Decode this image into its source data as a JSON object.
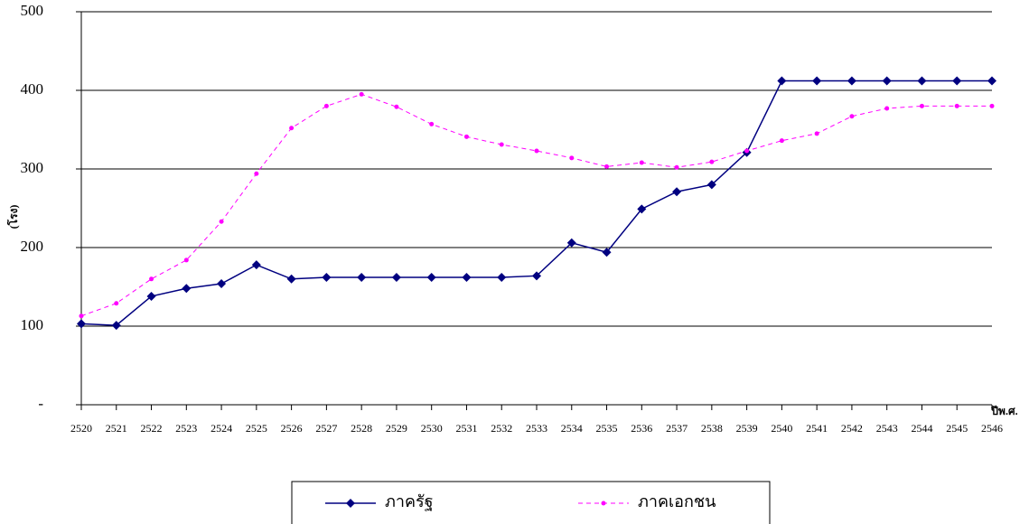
{
  "chart_data": {
    "type": "line",
    "y_label": "(โรง)",
    "x_label": "ปีพ.ศ.",
    "categories": [
      "2520",
      "2521",
      "2522",
      "2523",
      "2524",
      "2525",
      "2526",
      "2527",
      "2528",
      "2529",
      "2530",
      "2531",
      "2532",
      "2533",
      "2534",
      "2535",
      "2536",
      "2537",
      "2538",
      "2539",
      "2540",
      "2541",
      "2542",
      "2543",
      "2544",
      "2545",
      "2546"
    ],
    "series": [
      {
        "name": "ภาครัฐ",
        "color": "#000080",
        "marker": "diamond",
        "dashed": false,
        "values": [
          103,
          101,
          138,
          148,
          154,
          178,
          160,
          162,
          162,
          162,
          162,
          162,
          162,
          164,
          206,
          194,
          249,
          271,
          280,
          321,
          412,
          412,
          412,
          412,
          412,
          412,
          412
        ]
      },
      {
        "name": "ภาคเอกชน",
        "color": "#ff00ff",
        "marker": "circle",
        "dashed": true,
        "values": [
          113,
          129,
          160,
          184,
          233,
          294,
          352,
          380,
          395,
          379,
          357,
          341,
          331,
          323,
          314,
          303,
          308,
          302,
          309,
          323,
          336,
          345,
          367,
          377,
          380,
          380,
          380
        ]
      }
    ],
    "ylim": [
      0,
      500
    ],
    "yticks": [
      {
        "value": 0,
        "label": "-"
      },
      100,
      200,
      300,
      400,
      500
    ],
    "grid": true
  }
}
